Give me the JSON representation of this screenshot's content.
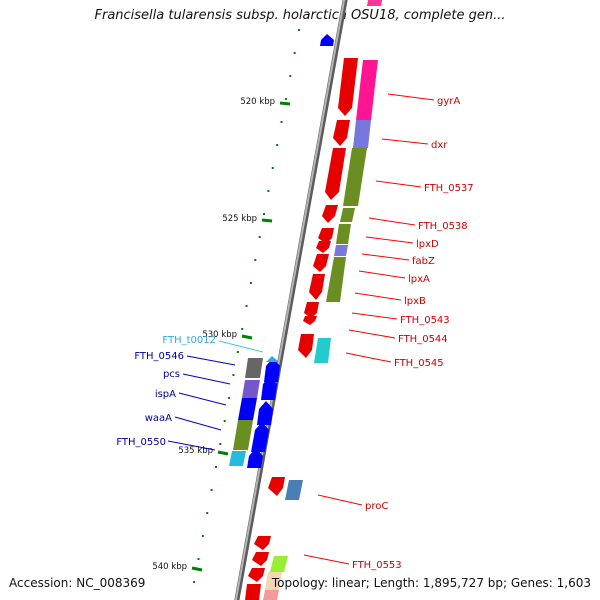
{
  "title": "Francisella tularensis subsp. holarctica OSU18, complete gen...",
  "accession": "Accession: NC_008369",
  "summary": "Topology: linear; Length: 1,895,727 bp; Genes: 1,603",
  "colors": {
    "reverse_strand": "#ff0000",
    "forward_strand": "#0000ff",
    "rna": "#44bbdd",
    "tick": "#008000",
    "backbone": "#888888"
  },
  "ticks": [
    {
      "label": "520 kbp"
    },
    {
      "label": "525 kbp"
    },
    {
      "label": "530 kbp"
    },
    {
      "label": "535 kbp"
    },
    {
      "label": "540 kbp"
    }
  ],
  "right_genes": [
    {
      "label": "gyrA",
      "color": "#cc0000"
    },
    {
      "label": "dxr",
      "color": "#cc0000"
    },
    {
      "label": "FTH_0537",
      "color": "#cc0000"
    },
    {
      "label": "FTH_0538",
      "color": "#cc0000"
    },
    {
      "label": "lpxD",
      "color": "#cc0000"
    },
    {
      "label": "fabZ",
      "color": "#cc0000"
    },
    {
      "label": "lpxA",
      "color": "#cc0000"
    },
    {
      "label": "lpxB",
      "color": "#cc0000"
    },
    {
      "label": "FTH_0543",
      "color": "#cc0000"
    },
    {
      "label": "FTH_0544",
      "color": "#cc0000"
    },
    {
      "label": "FTH_0545",
      "color": "#cc0000"
    },
    {
      "label": "proC",
      "color": "#cc0000"
    },
    {
      "label": "FTH_0553",
      "color": "#cc0000"
    }
  ],
  "left_genes": [
    {
      "label": "FTH_t0012",
      "color": "#33aadd"
    },
    {
      "label": "FTH_0546",
      "color": "#000099"
    },
    {
      "label": "pcs",
      "color": "#000099"
    },
    {
      "label": "ispA",
      "color": "#000099"
    },
    {
      "label": "waaA",
      "color": "#000099"
    },
    {
      "label": "FTH_0550",
      "color": "#000099"
    }
  ]
}
